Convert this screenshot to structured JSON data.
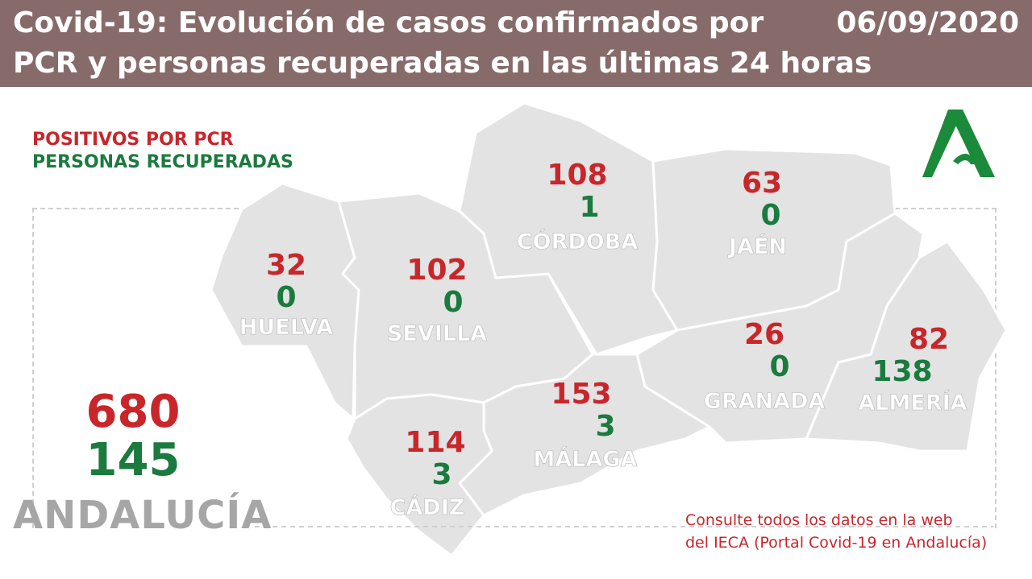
{
  "header": {
    "title_line1": "Covid-19: Evolución de casos confirmados por",
    "title_line2": "PCR y personas recuperadas en las últimas 24 horas",
    "date": "06/09/2020"
  },
  "legend": {
    "positives_label": "POSITIVOS POR PCR",
    "recovered_label": "PERSONAS RECUPERADAS"
  },
  "colors": {
    "header_bg": "#876b6b",
    "positives": "#c8262b",
    "recovered": "#1b7a3e",
    "map_fill": "#e3e3e3",
    "logo": "#1b8a3a"
  },
  "provinces": [
    {
      "name": "HUELVA",
      "positives": "32",
      "recovered": "0"
    },
    {
      "name": "SEVILLA",
      "positives": "102",
      "recovered": "0"
    },
    {
      "name": "CÓRDOBA",
      "positives": "108",
      "recovered": "1"
    },
    {
      "name": "JAÉN",
      "positives": "63",
      "recovered": "0"
    },
    {
      "name": "GRANADA",
      "positives": "26",
      "recovered": "0"
    },
    {
      "name": "ALMERÍA",
      "positives": "82",
      "recovered": "138"
    },
    {
      "name": "MÁLAGA",
      "positives": "153",
      "recovered": "3"
    },
    {
      "name": "CÁDIZ",
      "positives": "114",
      "recovered": "3"
    }
  ],
  "total": {
    "region": "ANDALUCÍA",
    "positives": "680",
    "recovered": "145"
  },
  "note": {
    "line1": "Consulte todos los datos en la web",
    "line2": "del IECA (Portal Covid-19 en Andalucía)"
  },
  "logo_icon": "junta-de-andalucia-logo-icon"
}
